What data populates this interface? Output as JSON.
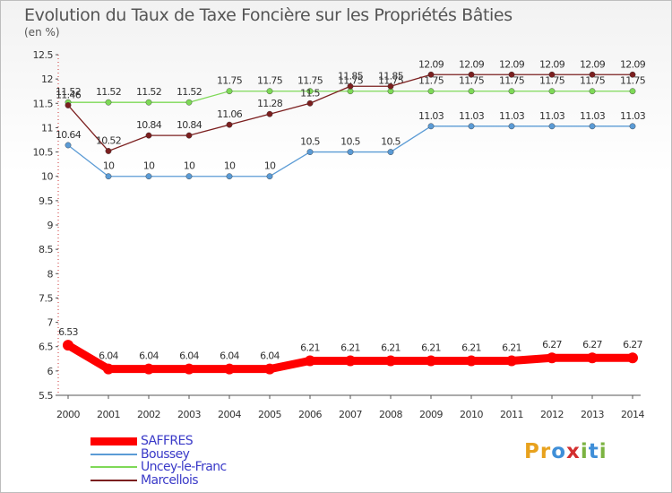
{
  "title": "Evolution du Taux de Taxe Foncière sur les Propriétés Bâties",
  "unit_label": "(en %)",
  "logo": {
    "text": "Proxiti",
    "letters": [
      "P",
      "r",
      "o",
      "x",
      "i",
      "t",
      "i"
    ],
    "colors": [
      "#e8a21e",
      "#e8a21e",
      "#3f8fd8",
      "#d32f2f",
      "#7cb342",
      "#3f8fd8",
      "#7cb342"
    ]
  },
  "chart_data": {
    "type": "line",
    "title": "Evolution du Taux de Taxe Foncière sur les Propriétés Bâties",
    "ylabel": "(en %)",
    "xlabel": "",
    "ylim": [
      5.5,
      12.5
    ],
    "yticks": [
      "5.5",
      "6",
      "6.5",
      "7",
      "7.5",
      "8",
      "8.5",
      "9",
      "9.5",
      "10",
      "10.5",
      "11",
      "11.5",
      "12",
      "12.5"
    ],
    "x": [
      "2000",
      "2001",
      "2002",
      "2003",
      "2004",
      "2005",
      "2006",
      "2007",
      "2008",
      "2009",
      "2010",
      "2011",
      "2012",
      "2013",
      "2014"
    ],
    "grid": false,
    "legend_position": "bottom-left",
    "series": [
      {
        "name": "SAFFRES",
        "color": "#ff0000",
        "values": [
          6.53,
          6.04,
          6.04,
          6.04,
          6.04,
          6.04,
          6.21,
          6.21,
          6.21,
          6.21,
          6.21,
          6.21,
          6.27,
          6.27,
          6.27
        ],
        "labels": [
          "6.53",
          "6.04",
          "6.04",
          "6.04",
          "6.04",
          "6.04",
          "6.21",
          "6.21",
          "6.21",
          "6.21",
          "6.21",
          "6.21",
          "6.27",
          "6.27",
          "6.27"
        ]
      },
      {
        "name": "Boussey",
        "color": "#5b9bd5",
        "values": [
          10.64,
          10,
          10,
          10,
          10,
          10,
          10.5,
          10.5,
          10.5,
          11.03,
          11.03,
          11.03,
          11.03,
          11.03,
          11.03
        ],
        "labels": [
          "10.64",
          "10",
          "10",
          "10",
          "10",
          "10",
          "10.5",
          "10.5",
          "10.5",
          "11.03",
          "11.03",
          "11.03",
          "11.03",
          "11.03",
          "11.03"
        ]
      },
      {
        "name": "Uncey-le-Franc",
        "color": "#7ed957",
        "values": [
          11.52,
          11.52,
          11.52,
          11.52,
          11.75,
          11.75,
          11.75,
          11.75,
          11.75,
          11.75,
          11.75,
          11.75,
          11.75,
          11.75,
          11.75
        ],
        "labels": [
          "11.52",
          "11.52",
          "11.52",
          "11.52",
          "11.75",
          "11.75",
          "11.75",
          "11.75",
          "11.75",
          "11.75",
          "11.75",
          "11.75",
          "11.75",
          "11.75",
          "11.75"
        ]
      },
      {
        "name": "Marcellois",
        "color": "#7b1f1f",
        "values": [
          11.46,
          10.52,
          10.84,
          10.84,
          11.06,
          11.28,
          11.5,
          11.85,
          11.85,
          12.09,
          12.09,
          12.09,
          12.09,
          12.09,
          12.09
        ],
        "labels": [
          "11.46",
          "10.52",
          "10.84",
          "10.84",
          "11.06",
          "11.28",
          "11.5",
          "11.85",
          "11.85",
          "12.09",
          "12.09",
          "12.09",
          "12.09",
          "12.09",
          "12.09"
        ]
      }
    ]
  }
}
